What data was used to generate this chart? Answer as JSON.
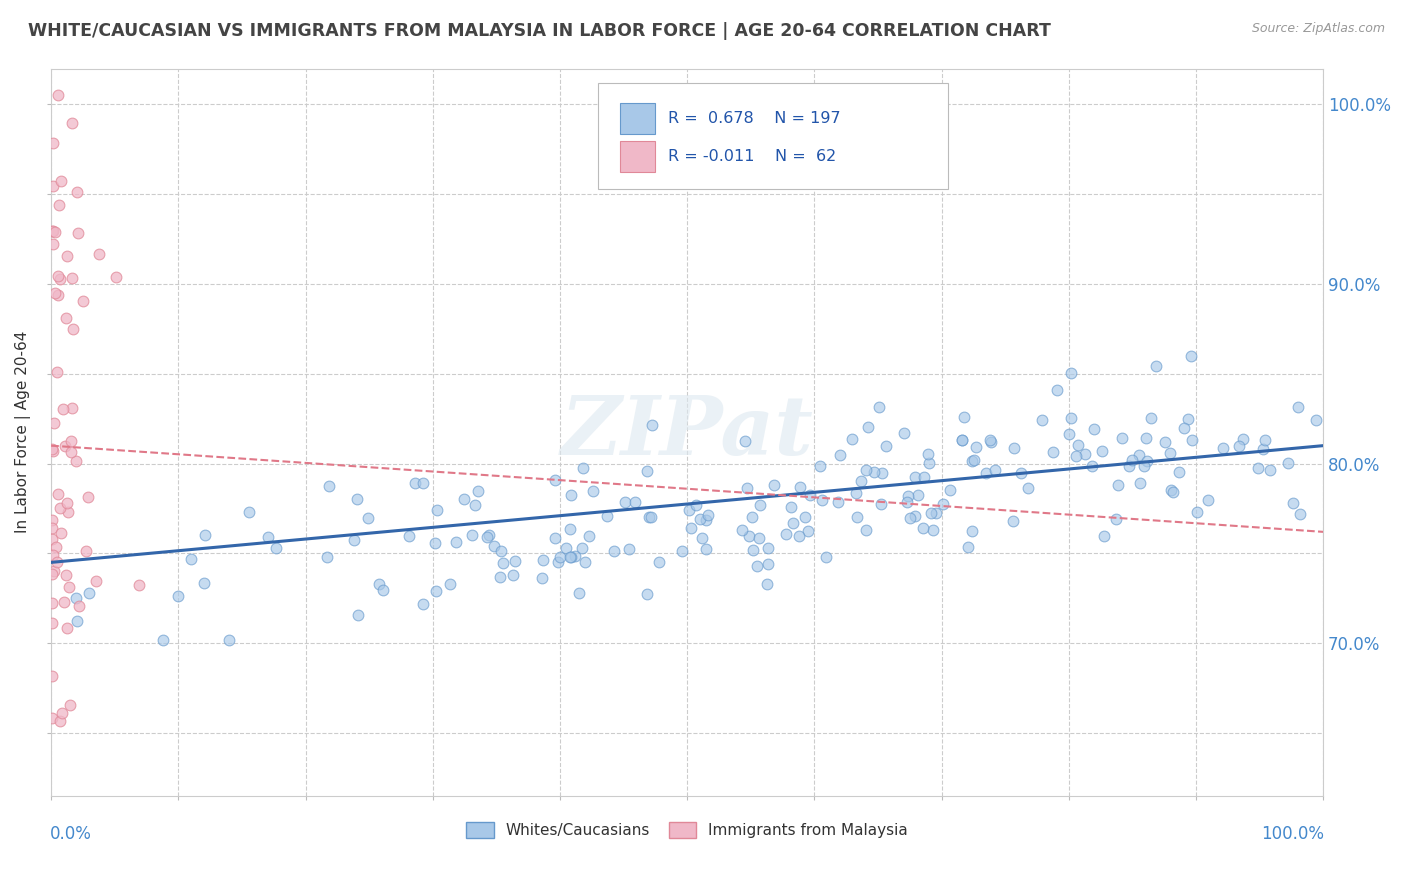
{
  "title": "WHITE/CAUCASIAN VS IMMIGRANTS FROM MALAYSIA IN LABOR FORCE | AGE 20-64 CORRELATION CHART",
  "source": "Source: ZipAtlas.com",
  "legend_label1": "Whites/Caucasians",
  "legend_label2": "Immigrants from Malaysia",
  "ylabel": "In Labor Force | Age 20-64",
  "R1": 0.678,
  "N1": 197,
  "R2": -0.011,
  "N2": 62,
  "color_blue": "#a8c8e8",
  "color_blue_edge": "#6699cc",
  "color_pink": "#f0b8c8",
  "color_pink_edge": "#e08898",
  "color_blue_line": "#3366aa",
  "color_pink_line": "#e07888",
  "watermark": "ZIPat",
  "xmin": 0.0,
  "xmax": 1.0,
  "ymin": 0.615,
  "ymax": 1.02,
  "blue_line_y0": 0.745,
  "blue_line_y1": 0.81,
  "pink_line_y0": 0.81,
  "pink_line_y1": 0.762,
  "ytick_vals": [
    0.7,
    0.8,
    0.9,
    1.0
  ],
  "ytick_labels": [
    "70.0%",
    "80.0%",
    "90.0%",
    "100.0%"
  ],
  "seed_blue": 42,
  "seed_pink": 99
}
